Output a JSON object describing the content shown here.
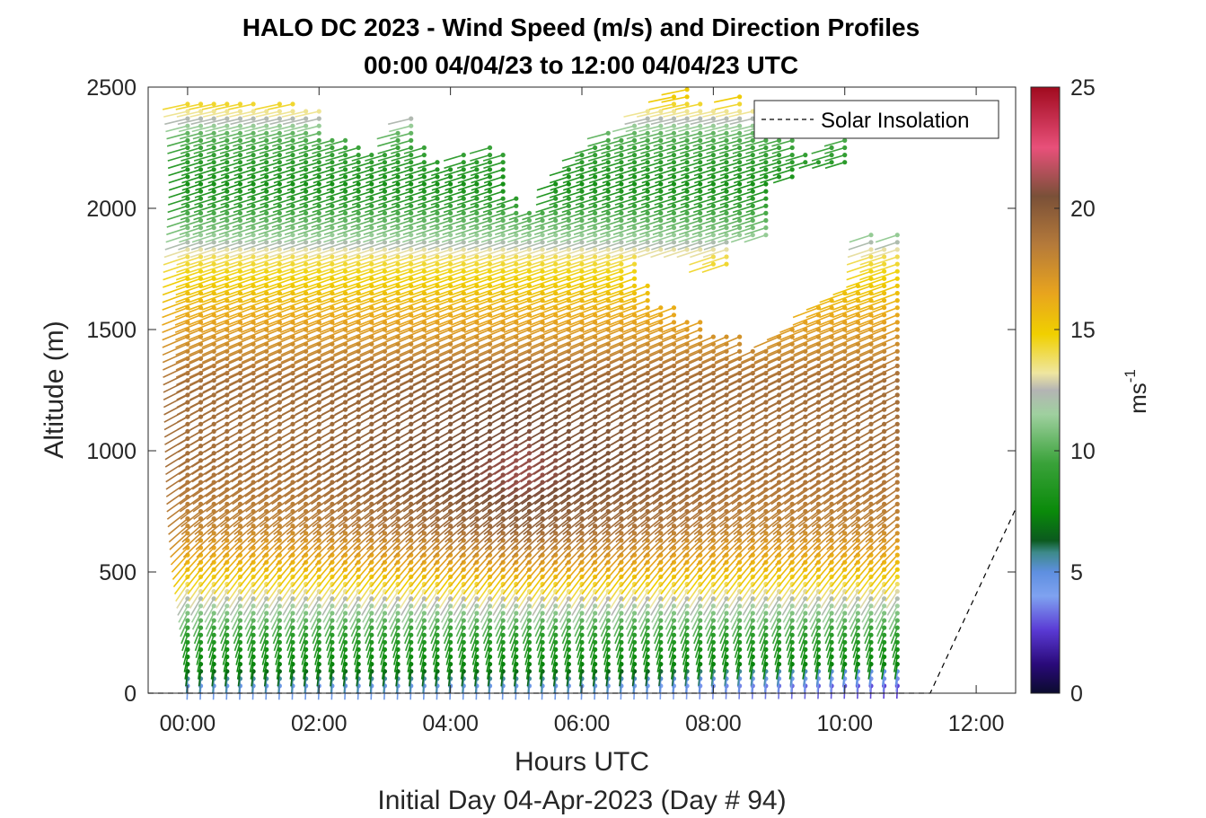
{
  "chart_data": {
    "type": "wind-barb-profile",
    "title": "HALO DC 2023 - Wind Speed (m/s) and Direction Profiles",
    "subtitle": "00:00 04/04/23 to 12:00 04/04/23  UTC",
    "xlabel": "Hours UTC",
    "xlabel2": "Initial Day 04-Apr-2023 (Day # 94)",
    "ylabel": "Altitude (m)",
    "xlim": [
      -0.6,
      12.6
    ],
    "ylim": [
      0,
      2500
    ],
    "x_ticks": [
      0,
      2,
      4,
      6,
      8,
      10,
      12
    ],
    "x_tick_labels": [
      "00:00",
      "02:00",
      "04:00",
      "06:00",
      "08:00",
      "10:00",
      "12:00"
    ],
    "y_ticks": [
      0,
      500,
      1000,
      1500,
      2000,
      2500
    ],
    "y_tick_labels": [
      "0",
      "500",
      "1000",
      "1500",
      "2000",
      "2500"
    ],
    "colorbar": {
      "label": "ms",
      "label_exponent": "-1",
      "min": 0,
      "max": 25,
      "ticks": [
        0,
        5,
        10,
        15,
        20,
        25
      ],
      "tick_labels": [
        "0",
        "5",
        "10",
        "15",
        "20",
        "25"
      ],
      "stops": [
        {
          "v": 0,
          "c": "#0b0b2e"
        },
        {
          "v": 1.2,
          "c": "#2a0a7a"
        },
        {
          "v": 2.6,
          "c": "#5a3ad4"
        },
        {
          "v": 4.0,
          "c": "#7fa2f0"
        },
        {
          "v": 5.0,
          "c": "#5e8fe0"
        },
        {
          "v": 5.8,
          "c": "#3d8a8a"
        },
        {
          "v": 6.3,
          "c": "#0b5a1e"
        },
        {
          "v": 7.5,
          "c": "#0a8a0a"
        },
        {
          "v": 9.5,
          "c": "#3aa23a"
        },
        {
          "v": 11.5,
          "c": "#9fd09f"
        },
        {
          "v": 12.5,
          "c": "#b4b4b4"
        },
        {
          "v": 13.2,
          "c": "#efe6a0"
        },
        {
          "v": 14.8,
          "c": "#f0d000"
        },
        {
          "v": 16.5,
          "c": "#e8a41e"
        },
        {
          "v": 18.5,
          "c": "#b57a3a"
        },
        {
          "v": 20.5,
          "c": "#7a5038"
        },
        {
          "v": 22.5,
          "c": "#e8507a"
        },
        {
          "v": 25,
          "c": "#a00a1e"
        }
      ]
    },
    "legend": {
      "entries": [
        "Solar Insolation"
      ],
      "placement": "top-right"
    },
    "grid": false,
    "solar_insolation": {
      "x": [
        -0.6,
        11.3,
        12.6
      ],
      "y": [
        0,
        0,
        760
      ]
    },
    "profile_times_hours": [
      0.0,
      0.2,
      0.4,
      0.6,
      0.8,
      1.0,
      1.2,
      1.4,
      1.6,
      1.8,
      2.0,
      2.2,
      2.4,
      2.6,
      2.8,
      3.0,
      3.2,
      3.4,
      3.6,
      3.8,
      4.0,
      4.2,
      4.4,
      4.6,
      4.8,
      5.0,
      5.2,
      5.4,
      5.6,
      5.8,
      6.0,
      6.2,
      6.4,
      6.6,
      6.8,
      7.0,
      7.2,
      7.4,
      7.6,
      7.8,
      8.0,
      8.2,
      8.4,
      8.6,
      8.8,
      9.0,
      9.2,
      9.4,
      9.6,
      9.8,
      10.0,
      10.2,
      10.4,
      10.6,
      10.8
    ],
    "profile_top_altitude_m": [
      2450,
      2450,
      2450,
      2450,
      2450,
      2450,
      2420,
      2450,
      2450,
      2400,
      2420,
      2300,
      2280,
      2250,
      2240,
      2240,
      2320,
      2380,
      2260,
      2200,
      2160,
      2220,
      2190,
      2260,
      2240,
      2040,
      2000,
      1980,
      2120,
      2180,
      2220,
      2260,
      2320,
      2280,
      2360,
      2400,
      2420,
      2460,
      2490,
      2440,
      2400,
      2420,
      2480,
      2400,
      2340,
      2300,
      2300,
      2240,
      2200,
      2260,
      2300,
      2200,
      1900,
      1850,
      1900
    ],
    "profile_gap_altitude_m": [
      [],
      [],
      [],
      [],
      [],
      [],
      [],
      [],
      [],
      [],
      [],
      [],
      [],
      [],
      [],
      [],
      [],
      [],
      [],
      [],
      [],
      [],
      [],
      [],
      [],
      [],
      [],
      [],
      [],
      [],
      [],
      [],
      [],
      [],
      [],
      [
        [
          1700,
          1800
        ]
      ],
      [
        [
          1620,
          1800
        ]
      ],
      [
        [
          1620,
          1800
        ]
      ],
      [
        [
          1560,
          1800
        ]
      ],
      [
        [
          1560,
          1800
        ]
      ],
      [
        [
          1500,
          1760
        ]
      ],
      [
        [
          1500,
          1760
        ]
      ],
      [
        [
          1480,
          1880
        ]
      ],
      [
        [
          1440,
          1880
        ]
      ],
      [
        [
          1420,
          1880
        ]
      ],
      [
        [
          1500,
          2100
        ]
      ],
      [
        [
          1520,
          2120
        ]
      ],
      [
        [
          1560,
          2160
        ]
      ],
      [
        [
          1600,
          2160
        ]
      ],
      [
        [
          1640,
          2160
        ]
      ],
      [
        [
          1660,
          2160
        ]
      ],
      [
        [
          1700,
          2200
        ]
      ],
      [],
      [],
      []
    ],
    "speed_profile_ms": [
      {
        "altitude_m": 0,
        "speed": 3.5
      },
      {
        "altitude_m": 100,
        "speed": 7
      },
      {
        "altitude_m": 250,
        "speed": 9
      },
      {
        "altitude_m": 400,
        "speed": 12.5
      },
      {
        "altitude_m": 500,
        "speed": 15
      },
      {
        "altitude_m": 700,
        "speed": 18
      },
      {
        "altitude_m": 1000,
        "speed": 19
      },
      {
        "altitude_m": 1300,
        "speed": 19
      },
      {
        "altitude_m": 1600,
        "speed": 16
      },
      {
        "altitude_m": 1800,
        "speed": 14
      },
      {
        "altitude_m": 1900,
        "speed": 11
      },
      {
        "altitude_m": 2100,
        "speed": 8
      },
      {
        "altitude_m": 2300,
        "speed": 10
      },
      {
        "altitude_m": 2450,
        "speed": 15
      }
    ],
    "direction_profile_deg": [
      {
        "altitude_m": 0,
        "direction": 180
      },
      {
        "altitude_m": 300,
        "direction": 200
      },
      {
        "altitude_m": 800,
        "direction": 230
      },
      {
        "altitude_m": 1500,
        "direction": 250
      },
      {
        "altitude_m": 2000,
        "direction": 265
      },
      {
        "altitude_m": 2450,
        "direction": 270
      }
    ]
  }
}
